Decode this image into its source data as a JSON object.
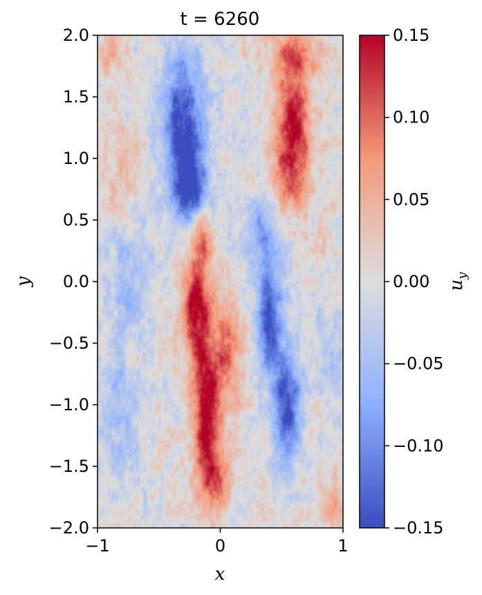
{
  "chart_data": {
    "type": "heatmap",
    "title": "t = 6260",
    "xlabel": "x",
    "ylabel": "y",
    "xlim": [
      -1,
      1
    ],
    "ylim": [
      -2,
      2
    ],
    "xticks": [
      "−1",
      "0",
      "1"
    ],
    "yticks": [
      "2.0",
      "1.5",
      "1.0",
      "0.5",
      "0.0",
      "−0.5",
      "−1.0",
      "−1.5",
      "−2.0"
    ],
    "colormap": "coolwarm",
    "colorbar": {
      "label": "u_y",
      "range": [
        -0.15,
        0.15
      ],
      "ticks": [
        "0.15",
        "0.10",
        "0.05",
        "0.00",
        "−0.05",
        "−0.10",
        "−0.15"
      ],
      "low_color": "#3b4cc0",
      "mid_color": "#dddddd",
      "high_color": "#b40426"
    },
    "features": [
      {
        "x": -0.3,
        "y": 1.3,
        "value": -0.15,
        "sx": 0.17,
        "sy": 0.55
      },
      {
        "x": -0.25,
        "y": 0.75,
        "value": -0.13,
        "sx": 0.14,
        "sy": 0.3
      },
      {
        "x": 0.6,
        "y": 1.3,
        "value": 0.15,
        "sx": 0.14,
        "sy": 0.42
      },
      {
        "x": 0.55,
        "y": 0.8,
        "value": 0.08,
        "sx": 0.14,
        "sy": 0.3
      },
      {
        "x": 0.6,
        "y": 1.85,
        "value": 0.09,
        "sx": 0.2,
        "sy": 0.2
      },
      {
        "x": -0.15,
        "y": 0.35,
        "value": 0.09,
        "sx": 0.09,
        "sy": 0.22
      },
      {
        "x": -0.2,
        "y": -0.2,
        "value": 0.15,
        "sx": 0.11,
        "sy": 0.4
      },
      {
        "x": -0.12,
        "y": -1.0,
        "value": 0.15,
        "sx": 0.11,
        "sy": 0.55
      },
      {
        "x": 0.05,
        "y": -0.6,
        "value": 0.09,
        "sx": 0.12,
        "sy": 0.5
      },
      {
        "x": -0.05,
        "y": -1.6,
        "value": 0.1,
        "sx": 0.12,
        "sy": 0.3
      },
      {
        "x": 0.4,
        "y": -0.3,
        "value": -0.15,
        "sx": 0.1,
        "sy": 0.45
      },
      {
        "x": 0.55,
        "y": -1.0,
        "value": -0.15,
        "sx": 0.11,
        "sy": 0.45
      },
      {
        "x": 0.35,
        "y": 0.4,
        "value": -0.07,
        "sx": 0.18,
        "sy": 0.3
      },
      {
        "x": -0.85,
        "y": 0.9,
        "value": 0.04,
        "sx": 0.14,
        "sy": 0.35
      },
      {
        "x": -0.75,
        "y": 0.0,
        "value": -0.05,
        "sx": 0.18,
        "sy": 0.6
      },
      {
        "x": -0.8,
        "y": -1.1,
        "value": -0.05,
        "sx": 0.18,
        "sy": 0.6
      },
      {
        "x": -0.7,
        "y": -0.55,
        "value": 0.03,
        "sx": 0.12,
        "sy": 0.2
      },
      {
        "x": 0.9,
        "y": -0.5,
        "value": -0.03,
        "sx": 0.15,
        "sy": 0.6
      },
      {
        "x": 0.85,
        "y": 0.3,
        "value": 0.02,
        "sx": 0.1,
        "sy": 0.3
      },
      {
        "x": -0.9,
        "y": 1.85,
        "value": 0.06,
        "sx": 0.1,
        "sy": 0.15
      },
      {
        "x": 0.9,
        "y": -1.8,
        "value": 0.05,
        "sx": 0.1,
        "sy": 0.2
      }
    ]
  }
}
